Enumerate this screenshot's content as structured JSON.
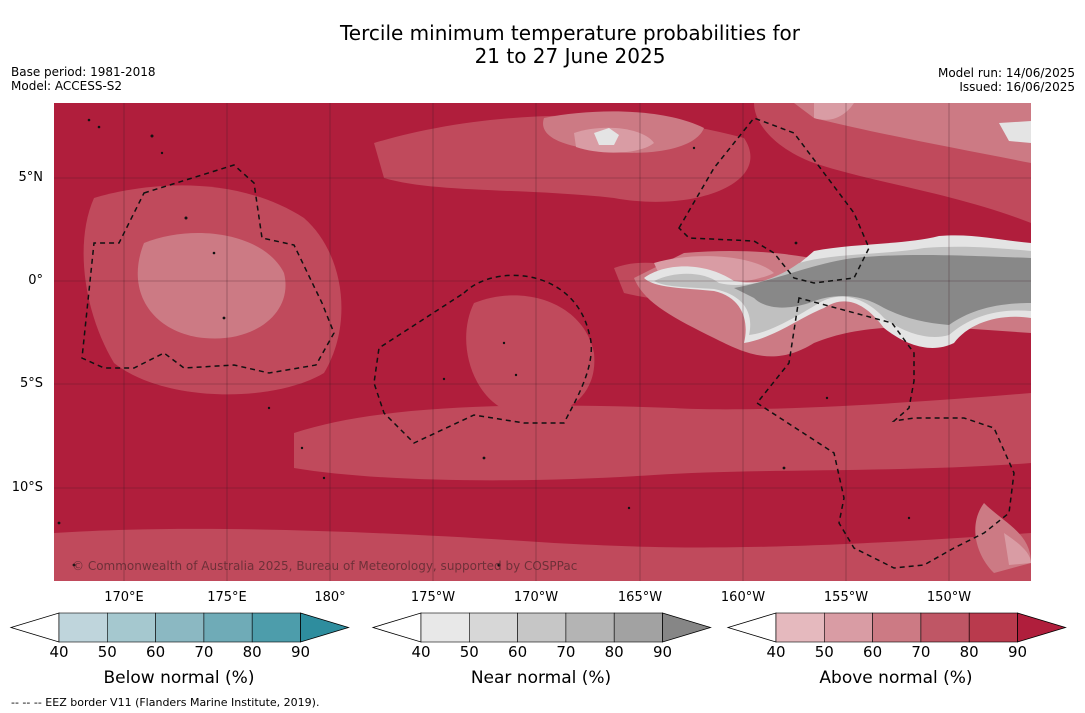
{
  "title_line1": "Tercile minimum temperature probabilities for",
  "title_line2": "21 to 27 June 2025",
  "meta": {
    "base_period": "Base period: 1981-2018",
    "model": "Model: ACCESS-S2",
    "model_run": "Model run: 14/06/2025",
    "issued": "Issued: 16/06/2025"
  },
  "latitude_labels": [
    "5°N",
    "0°",
    "5°S",
    "10°S"
  ],
  "longitude_labels": [
    "170°E",
    "175°E",
    "180°",
    "175°W",
    "170°W",
    "165°W",
    "160°W",
    "155°W",
    "150°W"
  ],
  "copyright": "© Commonwealth of Australia 2025, Bureau of Meteorology, supported by COSPPac",
  "footnote": "--  --  -- EEZ border V11 (Flanders Marine Institute, 2019).",
  "colorbars": [
    {
      "title": "Below normal (%)",
      "ticks": [
        "40",
        "50",
        "60",
        "70",
        "80",
        "90"
      ],
      "colors": [
        "#bfd5dc",
        "#a5c8cf",
        "#8bb8c2",
        "#6fabb7",
        "#4d9dab",
        "#2e8d9e"
      ]
    },
    {
      "title": "Near normal (%)",
      "ticks": [
        "40",
        "50",
        "60",
        "70",
        "80",
        "90"
      ],
      "colors": [
        "#e8e8e8",
        "#d7d7d7",
        "#c6c6c6",
        "#b4b4b4",
        "#a2a2a2",
        "#868686"
      ]
    },
    {
      "title": "Above normal (%)",
      "ticks": [
        "40",
        "50",
        "60",
        "70",
        "80",
        "90"
      ],
      "colors": [
        "#e5b9be",
        "#d99ca4",
        "#cc7a84",
        "#bf5665",
        "#b93a4d",
        "#b01e3c"
      ]
    }
  ],
  "map_colors": {
    "above_90": "#b01e3c",
    "above_80": "#b93a4d",
    "above_70": "#c04a5c",
    "above_60": "#cc7a84",
    "above_50": "#d99ca4",
    "near_40": "#e4e4e4",
    "near_60": "#c0c0c0",
    "near_80": "#888888"
  }
}
